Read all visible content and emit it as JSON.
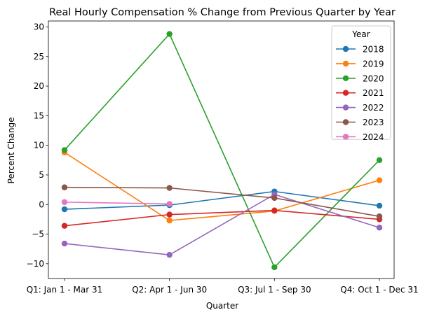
{
  "chart_data": {
    "type": "line",
    "title": "Real Hourly Compensation % Change from Previous Quarter by Year",
    "xlabel": "Quarter",
    "ylabel": "Percent Change",
    "categories": [
      "Q1: Jan 1 - Mar 31",
      "Q2: Apr 1 - Jun 30",
      "Q3: Jul 1 - Sep 30",
      "Q4: Oct 1 - Dec 31"
    ],
    "ylim": [
      -12.5,
      31
    ],
    "yticks": [
      -10,
      -5,
      0,
      5,
      10,
      15,
      20,
      25,
      30
    ],
    "grid": false,
    "legend": {
      "title": "Year",
      "position": "top-right"
    },
    "series": [
      {
        "name": "2018",
        "color": "#1f77b4",
        "values": [
          -0.8,
          -0.1,
          2.2,
          -0.2
        ]
      },
      {
        "name": "2019",
        "color": "#ff7f0e",
        "values": [
          8.8,
          -2.7,
          -1.1,
          4.1
        ]
      },
      {
        "name": "2020",
        "color": "#2ca02c",
        "values": [
          9.2,
          28.8,
          -10.6,
          7.5
        ]
      },
      {
        "name": "2021",
        "color": "#d62728",
        "values": [
          -3.6,
          -1.7,
          -1.0,
          -2.5
        ]
      },
      {
        "name": "2022",
        "color": "#9467bd",
        "values": [
          -6.6,
          -8.5,
          1.7,
          -3.9
        ]
      },
      {
        "name": "2023",
        "color": "#8c564b",
        "values": [
          2.9,
          2.8,
          1.1,
          -2.0
        ]
      },
      {
        "name": "2024",
        "color": "#e377c2",
        "values": [
          0.4,
          0.1,
          null,
          null
        ]
      }
    ]
  }
}
